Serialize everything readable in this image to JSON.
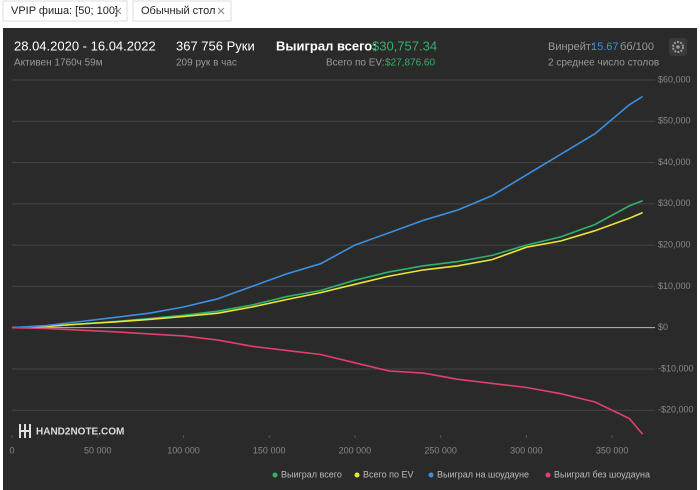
{
  "tabs": [
    {
      "label": "VPIP фиша: [50; 100]"
    },
    {
      "label": "Обычный стол"
    }
  ],
  "header": {
    "period": "28.04.2020 - 16.04.2022",
    "active": "Активен 1760ч 59м",
    "hands": "367 756 Руки",
    "hands_per_hour": "209 рук в час",
    "won_label": "Выиграл всего:",
    "won_value": "$30,757.34",
    "ev_label": "Всего по EV:",
    "ev_value": "$27,876.60",
    "winrate_label": "Винрейт:",
    "winrate_value": "15.67",
    "winrate_unit": "бб/100",
    "tables": "2 среднее число столов"
  },
  "chart_data": {
    "type": "line",
    "watermark": "HAND2NOTE.COM",
    "x": [
      0,
      20000,
      40000,
      60000,
      80000,
      100000,
      120000,
      140000,
      160000,
      180000,
      200000,
      220000,
      240000,
      260000,
      280000,
      300000,
      320000,
      340000,
      360000,
      367756
    ],
    "series": [
      {
        "name": "Выиграл всего",
        "color": "#2fb36b",
        "values": [
          0,
          300,
          900,
          1500,
          2200,
          3000,
          4000,
          5500,
          7500,
          9000,
          11500,
          13500,
          15000,
          16000,
          17500,
          20000,
          22000,
          25000,
          29500,
          30757
        ]
      },
      {
        "name": "Всего по EV",
        "color": "#e8e43a",
        "values": [
          0,
          300,
          900,
          1400,
          2000,
          2700,
          3500,
          5000,
          6800,
          8500,
          10500,
          12500,
          14000,
          15000,
          16500,
          19500,
          21000,
          23500,
          26500,
          27877
        ]
      },
      {
        "name": "Выиграл на шоудауне",
        "color": "#3d8fe0",
        "values": [
          0,
          500,
          1500,
          2500,
          3500,
          5000,
          7000,
          10000,
          13000,
          15500,
          20000,
          23000,
          26000,
          28500,
          32000,
          37000,
          42000,
          47000,
          54000,
          56000
        ]
      },
      {
        "name": "Выиграл без шоудауна",
        "color": "#e0406a",
        "values": [
          0,
          -200,
          -600,
          -1000,
          -1500,
          -2000,
          -3000,
          -4500,
          -5500,
          -6500,
          -8500,
          -10500,
          -11000,
          -12500,
          -13500,
          -14500,
          -16000,
          -18000,
          -22000,
          -25800
        ]
      }
    ],
    "xlim": [
      0,
      375000
    ],
    "xticks": [
      0,
      {
        "value": 50000,
        "label": "50 000"
      },
      {
        "value": 100000,
        "label": "100 000"
      },
      {
        "value": 150000,
        "label": "150 000"
      },
      {
        "value": 200000,
        "label": "200 000"
      },
      {
        "value": 250000,
        "label": "250 000"
      },
      {
        "value": 300000,
        "label": "300 000"
      },
      {
        "value": 350000,
        "label": "350 000"
      }
    ],
    "ylim": [
      -26000,
      60000
    ],
    "yticks": [
      {
        "value": -20000,
        "label": "-$20,000"
      },
      {
        "value": -10000,
        "label": "-$10,000"
      },
      {
        "value": 0,
        "label": "$0"
      },
      {
        "value": 10000,
        "label": "$10,000"
      },
      {
        "value": 20000,
        "label": "$20,000"
      },
      {
        "value": 30000,
        "label": "$30,000"
      },
      {
        "value": 40000,
        "label": "$40,000"
      },
      {
        "value": 50000,
        "label": "$50,000"
      },
      {
        "value": 60000,
        "label": "$60,000"
      }
    ],
    "grid": true
  }
}
